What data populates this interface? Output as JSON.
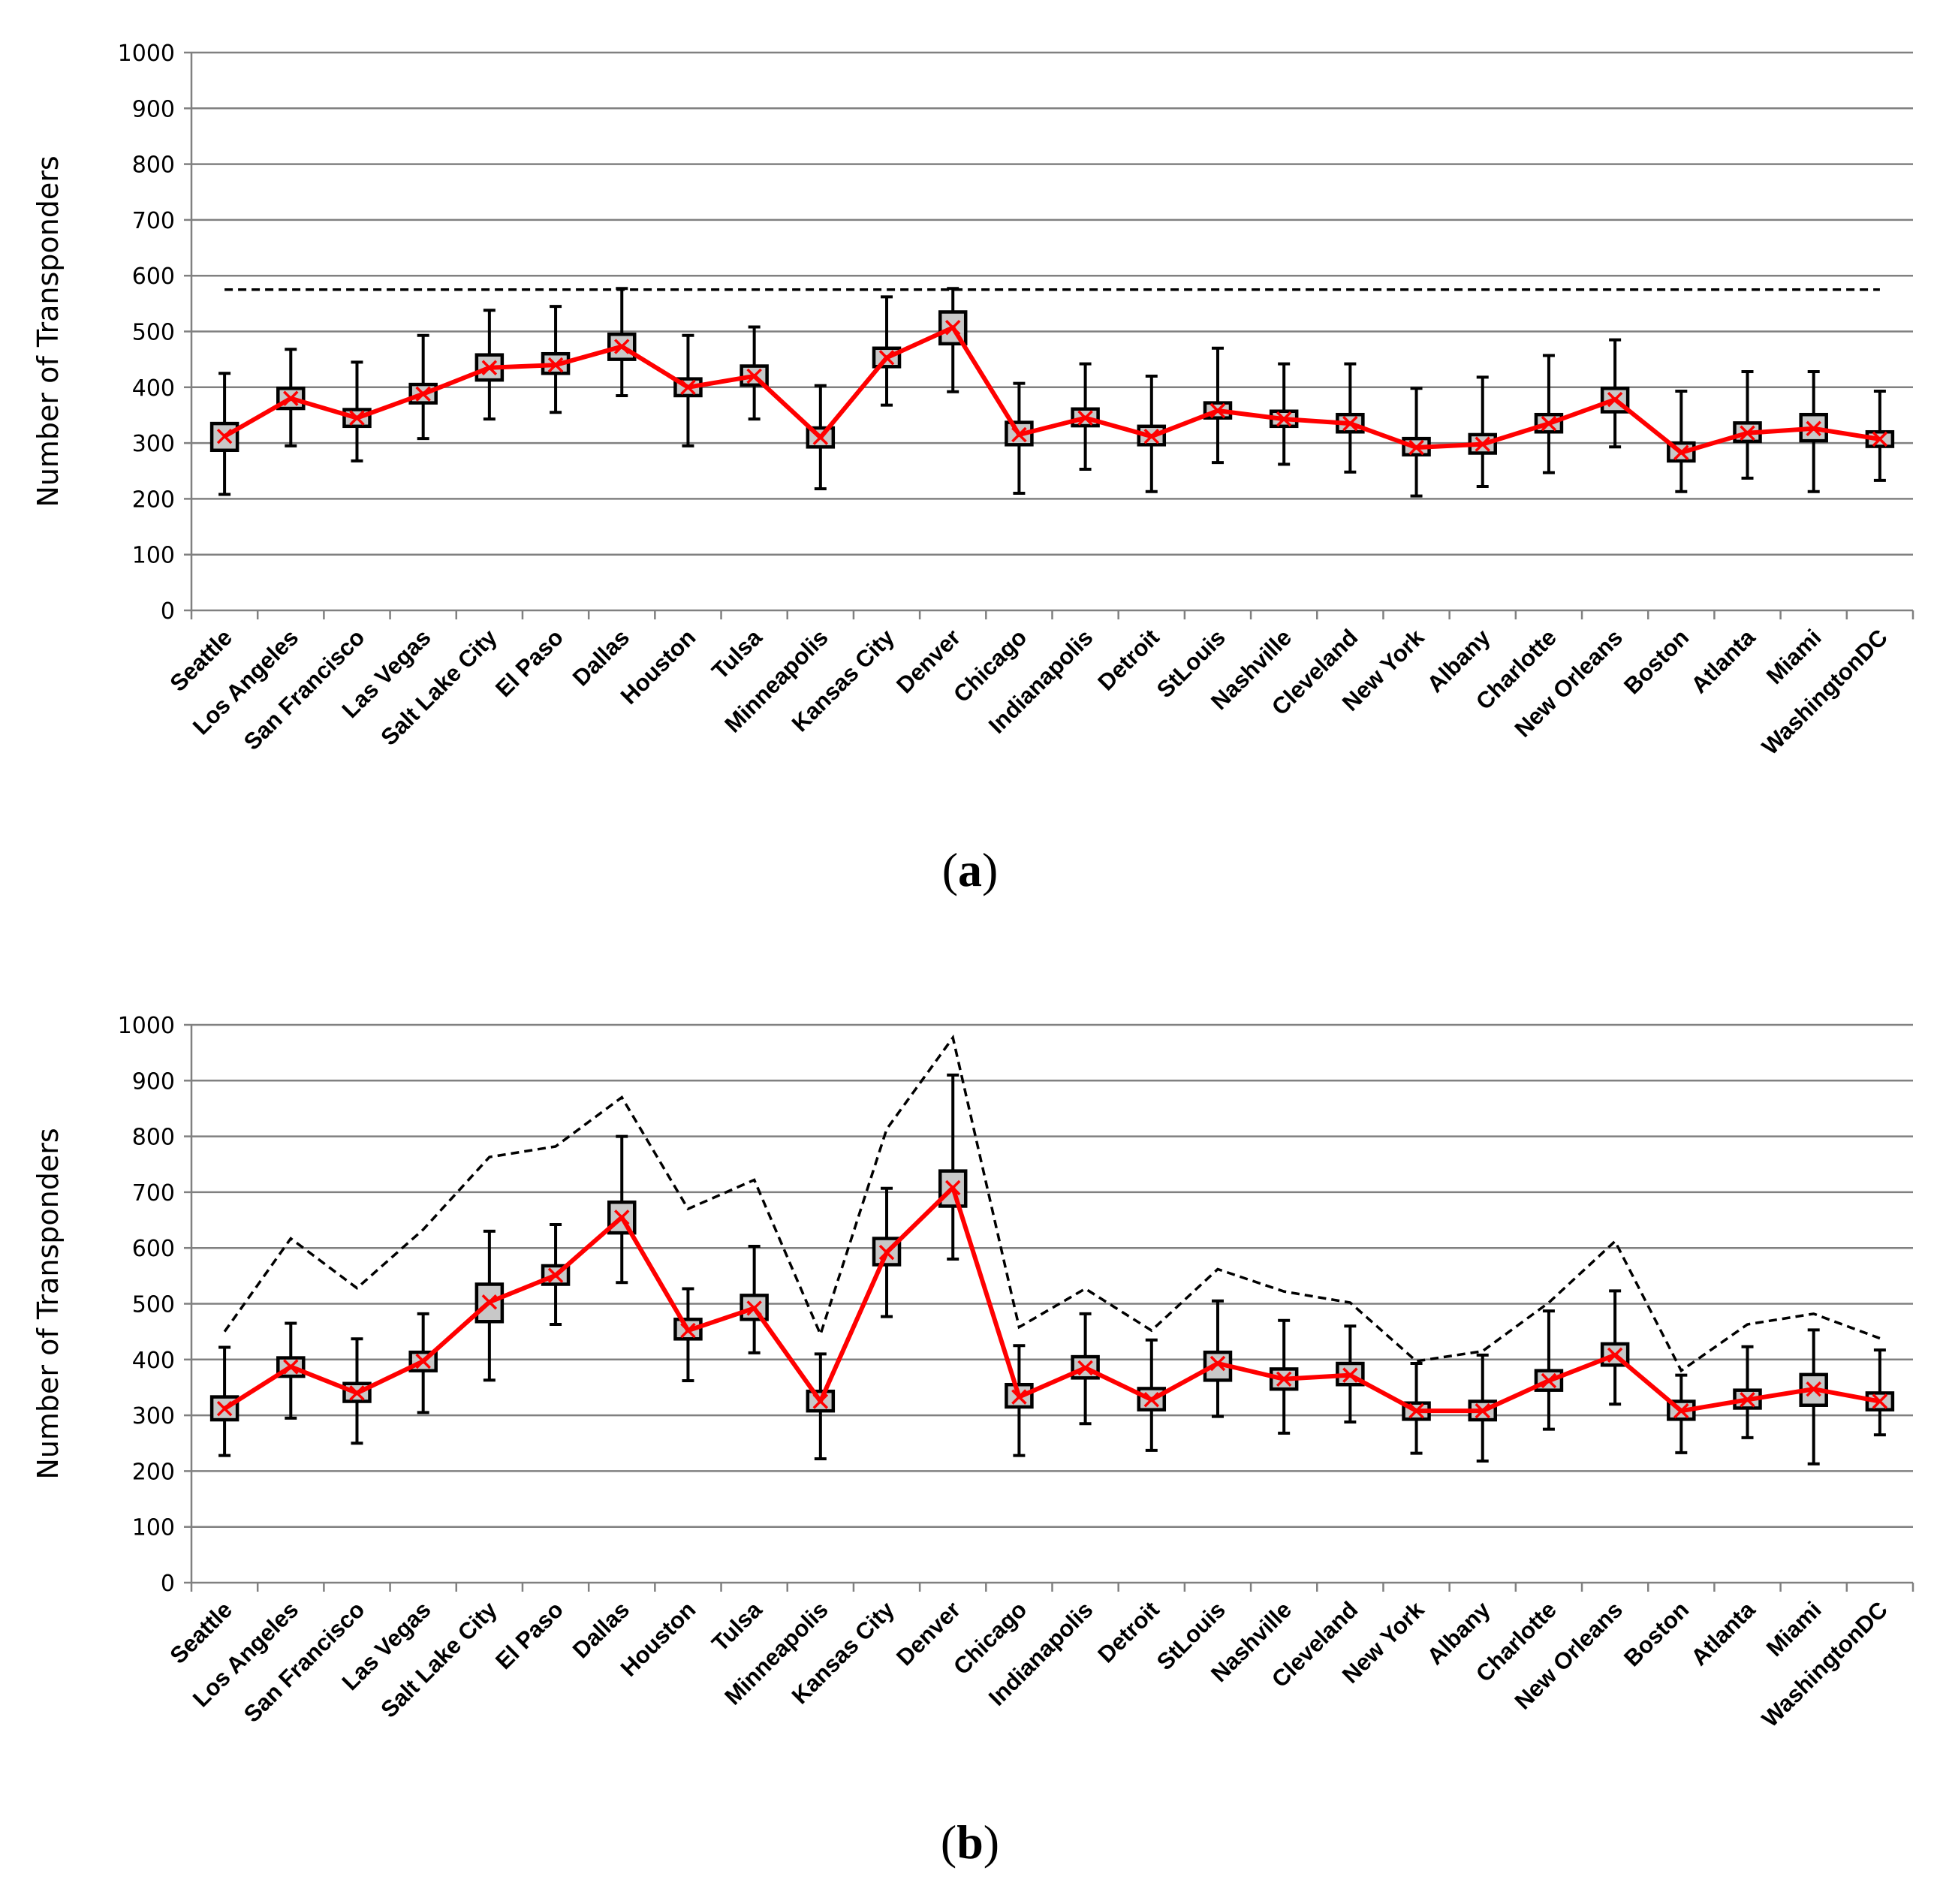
{
  "colors": {
    "mean_line": "#ff0000",
    "box_fill": "#c8c8c8",
    "grid": "#808080",
    "axis": "#808080",
    "ink": "#000000"
  },
  "chart_data": [
    {
      "type": "box",
      "panel_label": "a",
      "ylabel": "Number of Transponders",
      "ylim": [
        0,
        1000
      ],
      "yticks": [
        0,
        100,
        200,
        300,
        400,
        500,
        600,
        700,
        800,
        900,
        1000
      ],
      "grid": true,
      "categories": [
        "Seattle",
        "Los Angeles",
        "San Francisco",
        "Las Vegas",
        "Salt Lake City",
        "El Paso",
        "Dallas",
        "Houston",
        "Tulsa",
        "Minneapolis",
        "Kansas City",
        "Denver",
        "Chicago",
        "Indianapolis",
        "Detroit",
        "StLouis",
        "Nashville",
        "Cleveland",
        "New York",
        "Albany",
        "Charlotte",
        "New Orleans",
        "Boston",
        "Atlanta",
        "Miami",
        "WashingtonDC"
      ],
      "series": [
        {
          "name": "mean",
          "values": [
            312,
            380,
            345,
            388,
            435,
            440,
            473,
            400,
            420,
            310,
            453,
            507,
            315,
            345,
            312,
            358,
            343,
            335,
            292,
            298,
            335,
            378,
            283,
            318,
            326,
            307
          ]
        },
        {
          "name": "q1",
          "values": [
            287,
            362,
            330,
            372,
            413,
            425,
            450,
            385,
            404,
            293,
            437,
            478,
            297,
            331,
            297,
            345,
            330,
            320,
            279,
            282,
            320,
            356,
            268,
            303,
            304,
            294
          ]
        },
        {
          "name": "q3",
          "values": [
            335,
            398,
            360,
            405,
            458,
            460,
            495,
            415,
            438,
            327,
            470,
            535,
            337,
            361,
            330,
            372,
            357,
            351,
            308,
            315,
            351,
            398,
            300,
            336,
            351,
            320
          ]
        },
        {
          "name": "min",
          "values": [
            208,
            295,
            268,
            308,
            343,
            355,
            385,
            295,
            343,
            218,
            368,
            392,
            210,
            253,
            213,
            265,
            262,
            248,
            205,
            222,
            247,
            293,
            213,
            237,
            213,
            233
          ]
        },
        {
          "name": "max",
          "values": [
            425,
            468,
            445,
            493,
            538,
            545,
            577,
            493,
            508,
            403,
            562,
            577,
            407,
            442,
            420,
            470,
            442,
            442,
            398,
            418,
            457,
            485,
            393,
            428,
            428,
            393
          ]
        },
        {
          "name": "upper_bound",
          "values": [
            575,
            575,
            575,
            575,
            575,
            575,
            575,
            575,
            575,
            575,
            575,
            575,
            575,
            575,
            575,
            575,
            575,
            575,
            575,
            575,
            575,
            575,
            575,
            575,
            575,
            575
          ]
        }
      ]
    },
    {
      "type": "box",
      "panel_label": "b",
      "ylabel": "Number of Transponders",
      "ylim": [
        0,
        1000
      ],
      "yticks": [
        0,
        100,
        200,
        300,
        400,
        500,
        600,
        700,
        800,
        900,
        1000
      ],
      "grid": true,
      "categories": [
        "Seattle",
        "Los Angeles",
        "San Francisco",
        "Las Vegas",
        "Salt Lake City",
        "El Paso",
        "Dallas",
        "Houston",
        "Tulsa",
        "Minneapolis",
        "Kansas City",
        "Denver",
        "Chicago",
        "Indianapolis",
        "Detroit",
        "StLouis",
        "Nashville",
        "Cleveland",
        "New York",
        "Albany",
        "Charlotte",
        "New Orleans",
        "Boston",
        "Atlanta",
        "Miami",
        "WashingtonDC"
      ],
      "series": [
        {
          "name": "mean",
          "values": [
            312,
            387,
            340,
            397,
            503,
            551,
            655,
            452,
            492,
            325,
            592,
            708,
            333,
            385,
            328,
            393,
            365,
            372,
            308,
            308,
            362,
            408,
            308,
            328,
            347,
            325
          ]
        },
        {
          "name": "q1",
          "values": [
            292,
            370,
            325,
            380,
            468,
            535,
            627,
            437,
            472,
            308,
            570,
            675,
            315,
            367,
            310,
            363,
            347,
            355,
            293,
            292,
            345,
            390,
            293,
            313,
            318,
            310
          ]
        },
        {
          "name": "q3",
          "values": [
            333,
            403,
            357,
            413,
            535,
            568,
            682,
            472,
            515,
            343,
            617,
            738,
            355,
            405,
            348,
            413,
            383,
            393,
            322,
            325,
            380,
            428,
            325,
            345,
            373,
            340
          ]
        },
        {
          "name": "min",
          "values": [
            228,
            295,
            250,
            305,
            363,
            463,
            538,
            362,
            412,
            222,
            477,
            580,
            228,
            285,
            237,
            298,
            268,
            288,
            232,
            218,
            275,
            320,
            233,
            260,
            213,
            265
          ]
        },
        {
          "name": "max",
          "values": [
            422,
            465,
            437,
            482,
            630,
            642,
            800,
            527,
            603,
            410,
            707,
            910,
            425,
            482,
            435,
            505,
            470,
            460,
            393,
            408,
            487,
            523,
            372,
            423,
            453,
            417
          ]
        },
        {
          "name": "upper_bound",
          "values": [
            450,
            617,
            528,
            633,
            763,
            782,
            870,
            670,
            722,
            445,
            813,
            977,
            458,
            527,
            452,
            562,
            522,
            502,
            397,
            415,
            502,
            612,
            380,
            463,
            482,
            438
          ]
        }
      ]
    }
  ]
}
